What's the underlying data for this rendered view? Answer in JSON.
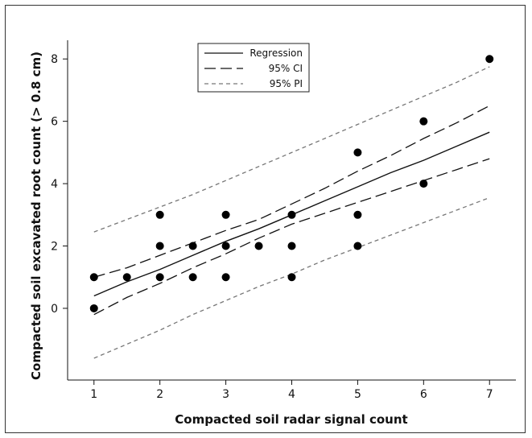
{
  "chart_data": {
    "type": "scatter",
    "title": "",
    "xlabel": "Compacted soil radar signal count",
    "ylabel": "Compacted soil excavated root count (> 0.8 cm)",
    "xlim": [
      0.6,
      7.4
    ],
    "ylim": [
      -2.3,
      8.6
    ],
    "xticks": [
      1,
      2,
      3,
      4,
      5,
      6,
      7
    ],
    "yticks": [
      0,
      2,
      4,
      6,
      8
    ],
    "grid": false,
    "legend_position": "top-center",
    "points": [
      {
        "x": 1,
        "y": 0
      },
      {
        "x": 1,
        "y": 1
      },
      {
        "x": 1.5,
        "y": 1
      },
      {
        "x": 2,
        "y": 1
      },
      {
        "x": 2,
        "y": 2
      },
      {
        "x": 2,
        "y": 3
      },
      {
        "x": 2.5,
        "y": 1
      },
      {
        "x": 2.5,
        "y": 2
      },
      {
        "x": 3,
        "y": 1
      },
      {
        "x": 3,
        "y": 2
      },
      {
        "x": 3,
        "y": 3
      },
      {
        "x": 3.5,
        "y": 2
      },
      {
        "x": 4,
        "y": 1
      },
      {
        "x": 4,
        "y": 2
      },
      {
        "x": 4,
        "y": 3
      },
      {
        "x": 5,
        "y": 2
      },
      {
        "x": 5,
        "y": 3
      },
      {
        "x": 5,
        "y": 5
      },
      {
        "x": 6,
        "y": 4
      },
      {
        "x": 6,
        "y": 6
      },
      {
        "x": 7,
        "y": 8
      }
    ],
    "series": [
      {
        "name": "Regression",
        "style": "solid",
        "color": "#111111",
        "x": [
          1,
          1.5,
          2,
          2.5,
          3,
          3.5,
          4,
          4.5,
          5,
          5.5,
          6,
          6.5,
          7
        ],
        "values": [
          0.4,
          0.85,
          1.25,
          1.7,
          2.15,
          2.55,
          3.0,
          3.45,
          3.9,
          4.35,
          4.75,
          5.2,
          5.65
        ]
      },
      {
        "name": "95% CI",
        "style": "dash",
        "color": "#111111",
        "x": [
          1,
          1.5,
          2,
          2.5,
          3,
          3.5,
          4,
          4.5,
          5,
          5.5,
          6,
          6.5,
          7
        ],
        "values": [
          1.0,
          1.3,
          1.7,
          2.1,
          2.5,
          2.85,
          3.35,
          3.85,
          4.4,
          4.9,
          5.45,
          5.95,
          6.5
        ]
      },
      {
        "name": "",
        "style": "dash",
        "color": "#111111",
        "x": [
          1,
          1.5,
          2,
          2.5,
          3,
          3.5,
          4,
          4.5,
          5,
          5.5,
          6,
          6.5,
          7
        ],
        "values": [
          -0.2,
          0.35,
          0.8,
          1.3,
          1.75,
          2.25,
          2.7,
          3.05,
          3.4,
          3.75,
          4.1,
          4.45,
          4.8
        ]
      },
      {
        "name": "95% PI",
        "style": "dot",
        "color": "#777777",
        "x": [
          1,
          1.5,
          2,
          2.5,
          3,
          3.5,
          4,
          4.5,
          5,
          5.5,
          6,
          6.5,
          7
        ],
        "values": [
          2.45,
          2.85,
          3.25,
          3.65,
          4.1,
          4.55,
          5.0,
          5.45,
          5.9,
          6.35,
          6.8,
          7.25,
          7.75
        ]
      },
      {
        "name": "",
        "style": "dot",
        "color": "#777777",
        "x": [
          1,
          1.5,
          2,
          2.5,
          3,
          3.5,
          4,
          4.5,
          5,
          5.5,
          6,
          6.5,
          7
        ],
        "values": [
          -1.6,
          -1.15,
          -0.7,
          -0.2,
          0.25,
          0.7,
          1.1,
          1.55,
          1.95,
          2.35,
          2.75,
          3.15,
          3.55
        ]
      }
    ],
    "legend": [
      {
        "label": "Regression",
        "style": "solid"
      },
      {
        "label": "95% CI",
        "style": "dash"
      },
      {
        "label": "95% PI",
        "style": "dot"
      }
    ]
  }
}
